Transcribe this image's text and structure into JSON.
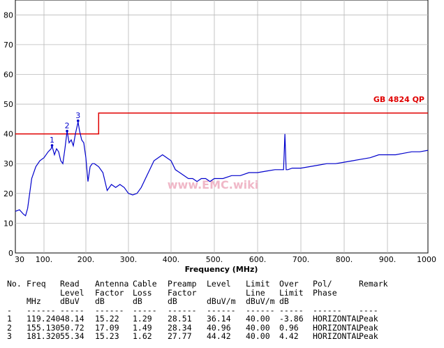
{
  "chart_data": {
    "type": "line",
    "title": "",
    "xlabel": "Frequency (MHz)",
    "ylabel": "",
    "xlim": [
      30,
      1000
    ],
    "ylim": [
      0,
      85
    ],
    "grid": true,
    "x_ticks": [
      30,
      100,
      200,
      300,
      400,
      500,
      600,
      700,
      800,
      900,
      1000
    ],
    "x_tick_labels": [
      "30",
      "100.",
      "200.",
      "300.",
      "400.",
      "500.",
      "600.",
      "700.",
      "800.",
      "900.",
      "1000"
    ],
    "y_ticks": [
      0,
      10,
      20,
      30,
      40,
      50,
      60,
      70,
      80
    ],
    "y_tick_labels": [
      "0",
      "10",
      "20",
      "30",
      "40",
      "50",
      "60",
      "70",
      "80"
    ],
    "limit_line": {
      "name": "GB 4824 QP",
      "color": "#e00000",
      "points": [
        [
          30,
          40
        ],
        [
          230,
          40
        ],
        [
          230,
          47
        ],
        [
          1000,
          47
        ]
      ]
    },
    "series": [
      {
        "color": "#0000cc",
        "x": [
          30,
          40,
          50,
          55,
          60,
          65,
          70,
          80,
          90,
          100,
          110,
          117,
          119.24,
          125,
          130,
          135,
          140,
          145,
          150,
          155.13,
          160,
          165,
          170,
          175,
          181.32,
          185,
          190,
          195,
          200,
          205,
          210,
          215,
          220,
          230,
          240,
          250,
          260,
          270,
          280,
          290,
          300,
          310,
          320,
          330,
          340,
          350,
          360,
          370,
          380,
          390,
          400,
          410,
          420,
          430,
          440,
          450,
          460,
          470,
          480,
          490,
          500,
          520,
          540,
          560,
          580,
          600,
          620,
          640,
          655,
          660,
          663,
          666,
          670,
          680,
          700,
          720,
          740,
          760,
          780,
          800,
          820,
          840,
          860,
          880,
          900,
          920,
          940,
          960,
          980,
          1000
        ],
        "y": [
          14,
          14.5,
          13,
          12.5,
          15,
          20,
          25,
          29,
          31,
          32,
          34,
          35,
          36,
          33,
          35,
          34,
          31,
          30,
          35,
          41,
          37,
          38,
          36,
          40,
          44,
          41,
          38,
          37,
          32,
          24,
          29,
          30,
          30,
          29,
          27,
          21,
          23,
          22,
          23,
          22,
          20,
          19.5,
          20,
          22,
          25,
          28,
          31,
          32,
          33,
          32,
          31,
          28,
          27,
          26,
          25,
          25,
          24,
          25,
          25,
          24,
          25,
          25,
          26,
          26,
          27,
          27,
          27.5,
          28,
          28,
          28,
          40,
          28,
          28,
          28.5,
          28.5,
          29,
          29.5,
          30,
          30,
          30.5,
          31,
          31.5,
          32,
          33,
          33,
          33,
          33.5,
          34,
          34,
          34.5
        ]
      }
    ],
    "markers": [
      {
        "label": "1",
        "x": 119.24,
        "y": 36.14
      },
      {
        "label": "2",
        "x": 155.13,
        "y": 40.96
      },
      {
        "label": "3",
        "x": 181.32,
        "y": 44.42
      }
    ],
    "watermark": "www.EMC.wiki"
  },
  "table": {
    "headers": {
      "line1": [
        "No.",
        "Freq",
        "Read",
        "Antenna",
        "Cable",
        "Preamp",
        "Level",
        "Limit",
        "Over",
        "Pol/",
        "Remark"
      ],
      "line2": [
        "",
        "",
        "Level",
        "Factor",
        "Loss",
        "Factor",
        "",
        "Line",
        "Limit",
        "Phase",
        ""
      ],
      "line3": [
        "",
        "MHz",
        "dBuV",
        "dB",
        "dB",
        "dB",
        "dBuV/m",
        "dBuV/m",
        "dB",
        "",
        ""
      ],
      "line4": [
        "-",
        "------",
        "-----",
        "------",
        "-----",
        "------",
        "------",
        "------",
        "-----",
        "------",
        "----"
      ]
    },
    "rows": [
      [
        "1",
        "119.240",
        "48.14",
        "15.22",
        "1.29",
        "28.51",
        "36.14",
        "40.00",
        "-3.86",
        "HORIZONTAL",
        "Peak"
      ],
      [
        "2",
        "155.130",
        "50.72",
        "17.09",
        "1.49",
        "28.34",
        "40.96",
        "40.00",
        "0.96",
        "HORIZONTAL",
        "Peak"
      ],
      [
        "3",
        "181.320",
        "55.34",
        "15.23",
        "1.62",
        "27.77",
        "44.42",
        "40.00",
        "4.42",
        "HORIZONTAL",
        "Peak"
      ]
    ]
  }
}
